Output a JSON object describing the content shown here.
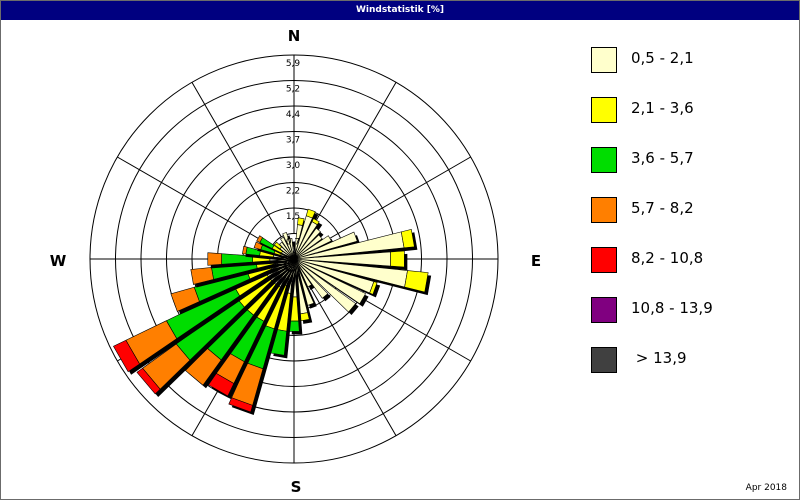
{
  "window": {
    "title": "Windstatistik [%]"
  },
  "footer": {
    "date": "Apr 2018"
  },
  "colors": {
    "grid": "#000000",
    "background": "#ffffff",
    "title_bar": "#000080",
    "petal_outline": "#000000"
  },
  "chart_data": {
    "type": "polar-stacked-bar",
    "title": "Windstatistik [%]",
    "directions_count": 36,
    "direction_labels": {
      "N": "N",
      "E": "E",
      "S": "S",
      "W": "W"
    },
    "radial_ticks": [
      "",
      "0,7",
      "1,5",
      "2,2",
      "3,0",
      "3,7",
      "4,4",
      "5,2",
      "5,9"
    ],
    "rmax": 5.9,
    "classes": [
      {
        "label": "0,5 - 2,1",
        "color": "#ffffcc"
      },
      {
        "label": "2,1 - 3,6",
        "color": "#ffff00"
      },
      {
        "label": "3,6 - 5,7",
        "color": "#00dd00"
      },
      {
        "label": "5,7 - 8,2",
        "color": "#ff7f00"
      },
      {
        "label": "8,2 - 10,8",
        "color": "#ff0000"
      },
      {
        "label": "10,8 - 13,9",
        "color": "#800080"
      },
      {
        "label": " > 13,9",
        "color": "#404040"
      }
    ],
    "legend_position": "right",
    "sectors": [
      {
        "dir": 0,
        "values": [
          0.2,
          0,
          0,
          0,
          0,
          0,
          0
        ]
      },
      {
        "dir": 10,
        "values": [
          1.0,
          0.2,
          0,
          0,
          0,
          0,
          0
        ]
      },
      {
        "dir": 20,
        "values": [
          1.3,
          0.2,
          0,
          0,
          0,
          0,
          0
        ]
      },
      {
        "dir": 30,
        "values": [
          1.2,
          0.1,
          0,
          0,
          0,
          0,
          0
        ]
      },
      {
        "dir": 40,
        "values": [
          1.1,
          0,
          0,
          0,
          0,
          0,
          0
        ]
      },
      {
        "dir": 50,
        "values": [
          1.0,
          0,
          0,
          0,
          0,
          0,
          0
        ]
      },
      {
        "dir": 60,
        "values": [
          1.2,
          0,
          0,
          0,
          0,
          0,
          0
        ]
      },
      {
        "dir": 70,
        "values": [
          1.9,
          0,
          0,
          0,
          0,
          0,
          0
        ]
      },
      {
        "dir": 80,
        "values": [
          3.2,
          0.3,
          0,
          0,
          0,
          0,
          0
        ]
      },
      {
        "dir": 90,
        "values": [
          2.8,
          0.4,
          0,
          0,
          0,
          0,
          0
        ]
      },
      {
        "dir": 100,
        "values": [
          3.3,
          0.6,
          0,
          0,
          0,
          0,
          0
        ]
      },
      {
        "dir": 110,
        "values": [
          2.4,
          0.1,
          0,
          0,
          0,
          0,
          0
        ]
      },
      {
        "dir": 120,
        "values": [
          2.3,
          0,
          0,
          0,
          0,
          0,
          0
        ]
      },
      {
        "dir": 130,
        "values": [
          2.2,
          0,
          0,
          0,
          0,
          0,
          0
        ]
      },
      {
        "dir": 140,
        "values": [
          1.4,
          0,
          0,
          0,
          0,
          0,
          0
        ]
      },
      {
        "dir": 150,
        "values": [
          0.9,
          0,
          0,
          0,
          0,
          0,
          0
        ]
      },
      {
        "dir": 160,
        "values": [
          1.4,
          0,
          0,
          0,
          0,
          0,
          0
        ]
      },
      {
        "dir": 170,
        "values": [
          1.6,
          0.2,
          0,
          0,
          0,
          0,
          0
        ]
      },
      {
        "dir": 180,
        "values": [
          1.1,
          0.7,
          0.3,
          0,
          0,
          0,
          0
        ]
      },
      {
        "dir": 190,
        "values": [
          1.0,
          1.1,
          0.7,
          0,
          0,
          0,
          0
        ]
      },
      {
        "dir": 200,
        "values": [
          0.8,
          1.3,
          1.2,
          1.1,
          0.2,
          0,
          0
        ]
      },
      {
        "dir": 210,
        "values": [
          0.9,
          1.1,
          1.3,
          0.7,
          0.4,
          0,
          0
        ]
      },
      {
        "dir": 220,
        "values": [
          0.9,
          1.1,
          1.6,
          0.9,
          0,
          0,
          0
        ]
      },
      {
        "dir": 230,
        "values": [
          0.9,
          1.1,
          2.2,
          1.2,
          0.2,
          0,
          0
        ]
      },
      {
        "dir": 240,
        "values": [
          0.9,
          1.0,
          2.2,
          1.3,
          0.4,
          0,
          0
        ]
      },
      {
        "dir": 250,
        "values": [
          0.7,
          0.7,
          1.6,
          0.7,
          0,
          0,
          0
        ]
      },
      {
        "dir": 260,
        "values": [
          0.6,
          0.5,
          1.3,
          0.6,
          0,
          0,
          0
        ]
      },
      {
        "dir": 270,
        "values": [
          0.7,
          0.5,
          0.9,
          0.4,
          0,
          0,
          0
        ]
      },
      {
        "dir": 280,
        "values": [
          0.6,
          0.4,
          0.4,
          0.1,
          0,
          0,
          0
        ]
      },
      {
        "dir": 290,
        "values": [
          0.4,
          0.2,
          0.4,
          0.2,
          0,
          0,
          0
        ]
      },
      {
        "dir": 300,
        "values": [
          0.4,
          0.3,
          0.4,
          0.1,
          0,
          0,
          0
        ]
      },
      {
        "dir": 310,
        "values": [
          0.5,
          0.2,
          0,
          0,
          0,
          0,
          0
        ]
      },
      {
        "dir": 320,
        "values": [
          0.6,
          0,
          0,
          0,
          0,
          0,
          0
        ]
      },
      {
        "dir": 330,
        "values": [
          0.7,
          0,
          0,
          0,
          0,
          0,
          0
        ]
      },
      {
        "dir": 340,
        "values": [
          0.8,
          0,
          0,
          0,
          0,
          0,
          0
        ]
      },
      {
        "dir": 350,
        "values": [
          0.6,
          0,
          0,
          0,
          0,
          0,
          0
        ]
      }
    ]
  }
}
